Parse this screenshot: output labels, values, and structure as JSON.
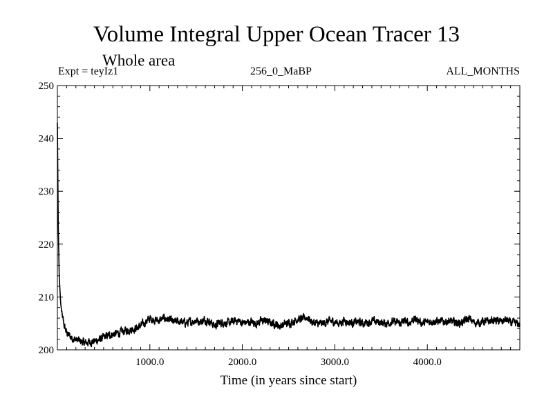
{
  "chart_data": {
    "type": "line",
    "title": "Volume Integral Upper Ocean Tracer 13",
    "subtitle": "Whole area",
    "header_left": "Expt = teyIz1",
    "header_center": "256_0_MaBP",
    "header_right": "ALL_MONTHS",
    "xlabel": "Time (in years since start)",
    "ylabel": "",
    "xlim": [
      0,
      5000
    ],
    "ylim": [
      200,
      250
    ],
    "x_ticks": [
      1000,
      2000,
      3000,
      4000
    ],
    "x_tick_labels": [
      "1000.0",
      "2000.0",
      "3000.0",
      "4000.0"
    ],
    "y_ticks": [
      200,
      210,
      220,
      230,
      240,
      250
    ],
    "y_tick_labels": [
      "200",
      "210",
      "220",
      "230",
      "240",
      "250"
    ],
    "grid": false,
    "series": [
      {
        "name": "Volume Integral Upper Ocean Tracer 13",
        "color": "#000000",
        "x": [
          0,
          10,
          20,
          35,
          50,
          75,
          100,
          150,
          200,
          250,
          300,
          350,
          400,
          450,
          500,
          550,
          600,
          650,
          700,
          750,
          800,
          850,
          900,
          950,
          1000,
          1050,
          1100,
          1150,
          1200,
          1250,
          1300,
          1350,
          1400,
          1450,
          1500,
          1550,
          1600,
          1650,
          1700,
          1750,
          1800,
          1850,
          1900,
          1950,
          2000,
          2050,
          2100,
          2150,
          2200,
          2250,
          2300,
          2350,
          2400,
          2450,
          2500,
          2550,
          2600,
          2650,
          2700,
          2750,
          2800,
          2850,
          2900,
          2950,
          3000,
          3050,
          3100,
          3150,
          3200,
          3250,
          3300,
          3350,
          3400,
          3450,
          3500,
          3550,
          3600,
          3650,
          3700,
          3750,
          3800,
          3850,
          3900,
          3950,
          4000,
          4050,
          4100,
          4150,
          4200,
          4250,
          4300,
          4350,
          4400,
          4450,
          4500,
          4550,
          4600,
          4650,
          4700,
          4750,
          4800,
          4850,
          4900,
          4950,
          5000
        ],
        "y": [
          243,
          223,
          214,
          209,
          206.5,
          204.5,
          203.2,
          202.3,
          201.9,
          201.6,
          201.3,
          201.5,
          201.6,
          201.9,
          202.3,
          202.7,
          203.0,
          203.1,
          203.4,
          203.7,
          203.9,
          204.1,
          204.5,
          205.2,
          205.9,
          205.7,
          205.5,
          206.0,
          205.8,
          205.2,
          205.4,
          205.2,
          205.1,
          205.3,
          205.6,
          205.3,
          205.7,
          205.4,
          204.5,
          205.1,
          205.2,
          205.0,
          205.3,
          205.6,
          205.1,
          205.2,
          205.3,
          205.0,
          205.4,
          205.5,
          205.1,
          205.0,
          204.5,
          204.8,
          205.1,
          205.4,
          205.9,
          205.8,
          206.2,
          205.3,
          205.0,
          204.9,
          205.2,
          205.4,
          205.3,
          205.0,
          205.6,
          205.2,
          205.1,
          205.3,
          205.0,
          205.2,
          205.4,
          205.3,
          205.2,
          205.0,
          205.3,
          205.2,
          205.0,
          205.4,
          205.1,
          205.8,
          205.6,
          205.0,
          205.2,
          205.5,
          205.4,
          205.3,
          205.4,
          205.3,
          205.2,
          205.1,
          205.4,
          205.9,
          205.2,
          205.1,
          205.4,
          205.3,
          205.6,
          205.5,
          205.3,
          205.7,
          205.1,
          205.0,
          204.8
        ]
      }
    ]
  }
}
